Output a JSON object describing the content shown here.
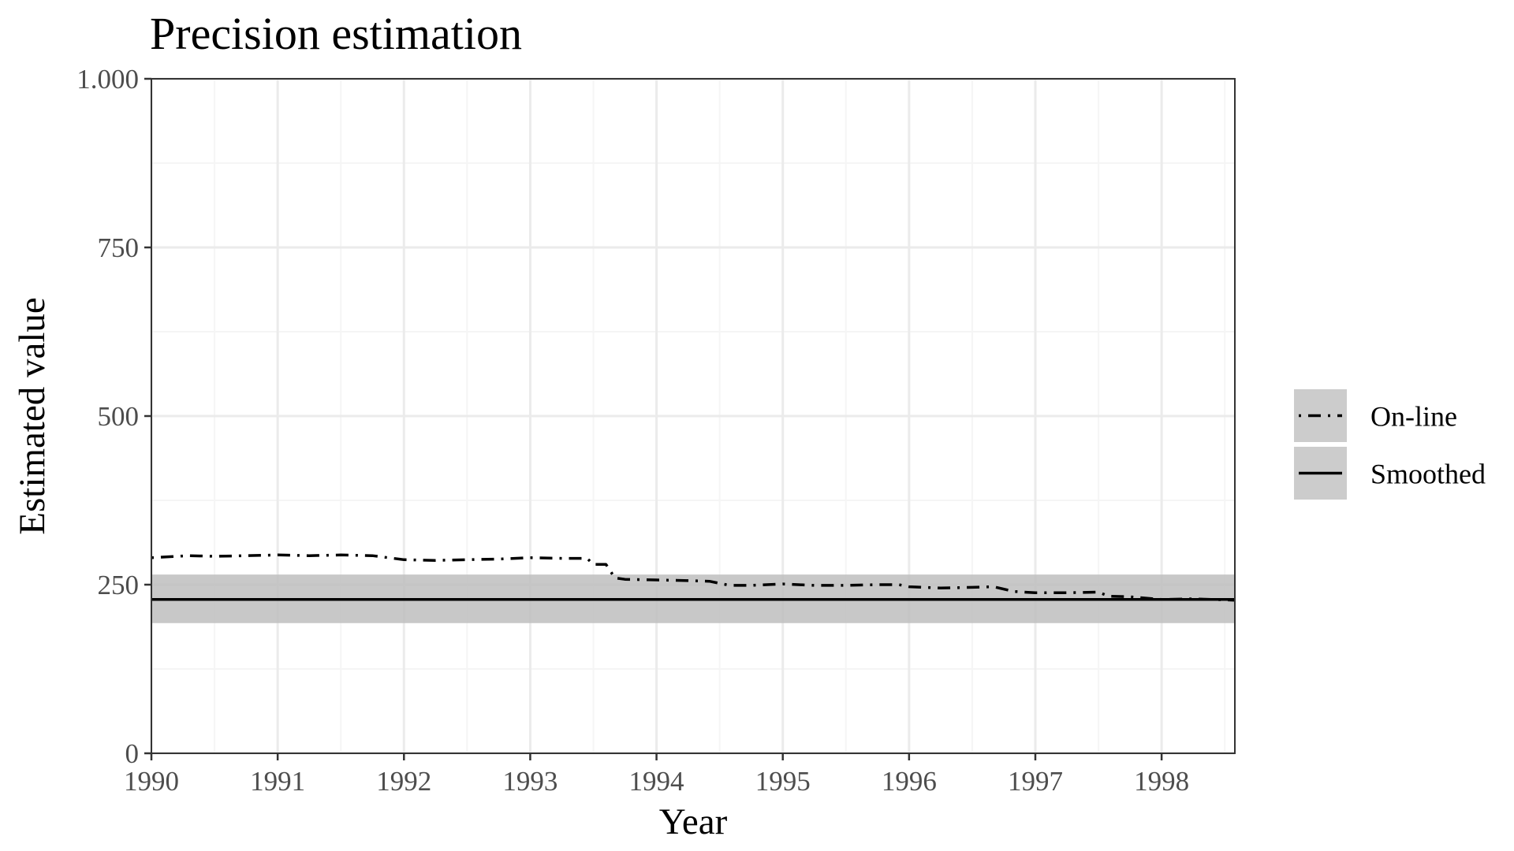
{
  "chart_data": {
    "type": "line",
    "title": "Precision estimation",
    "xlabel": "Year",
    "ylabel": "Estimated value",
    "xlim": [
      1990,
      1998.58
    ],
    "ylim": [
      0,
      1000
    ],
    "x_ticks": [
      1990,
      1991,
      1992,
      1993,
      1994,
      1995,
      1996,
      1997,
      1998
    ],
    "x_tick_labels": [
      "1990",
      "1991",
      "1992",
      "1993",
      "1994",
      "1995",
      "1996",
      "1997",
      "1998"
    ],
    "y_ticks": [
      0,
      250,
      500,
      750,
      1000
    ],
    "y_tick_labels": [
      "0",
      "250",
      "500",
      "750",
      "1.000"
    ],
    "grid": true,
    "legend_position": "right",
    "series": [
      {
        "name": "On-line",
        "line_style": "dot-dash",
        "color": "#000000",
        "x": [
          1990.0,
          1990.3,
          1990.5,
          1990.75,
          1991.0,
          1991.25,
          1991.5,
          1991.75,
          1992.0,
          1992.25,
          1992.5,
          1992.75,
          1993.0,
          1993.25,
          1993.45,
          1993.5,
          1993.6,
          1993.67,
          1993.75,
          1994.0,
          1994.25,
          1994.42,
          1994.58,
          1994.75,
          1995.0,
          1995.25,
          1995.5,
          1995.75,
          1995.92,
          1996.0,
          1996.25,
          1996.5,
          1996.67,
          1996.83,
          1997.0,
          1997.25,
          1997.5,
          1997.58,
          1997.75,
          1998.0,
          1998.25,
          1998.58
        ],
        "y": [
          290,
          293,
          292,
          293,
          294,
          293,
          294,
          293,
          287,
          286,
          287,
          288,
          290,
          289,
          289,
          280,
          280,
          260,
          258,
          257,
          256,
          255,
          249,
          249,
          251,
          249,
          249,
          250,
          250,
          247,
          245,
          246,
          247,
          240,
          238,
          238,
          239,
          233,
          232,
          228,
          229,
          227
        ]
      },
      {
        "name": "Smoothed",
        "line_style": "solid",
        "color": "#000000",
        "x": [
          1990.0,
          1998.58
        ],
        "y": [
          228,
          228
        ],
        "band_lower": 193,
        "band_upper": 265
      }
    ],
    "band_color": "#bebebe"
  },
  "colors": {
    "panel_border": "#333333",
    "grid_major": "#ebebeb",
    "grid_minor": "#f5f5f5",
    "tick_label": "#4d4d4d",
    "legend_key_background": "#cccccc",
    "confidence_band": "#bebebe"
  }
}
